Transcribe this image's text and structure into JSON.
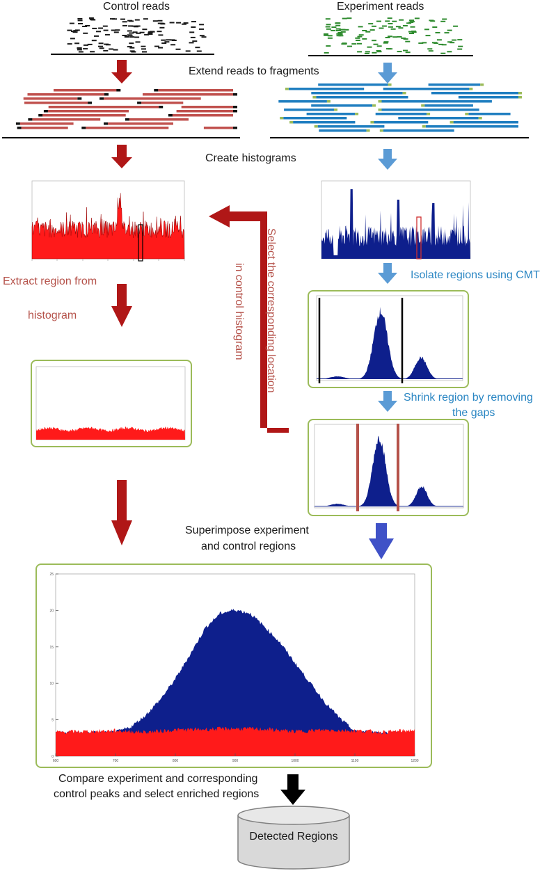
{
  "titles": {
    "control": "Control reads",
    "experiment": "Experiment reads"
  },
  "steps": {
    "extend": "Extend reads to fragments",
    "histograms": "Create histograms",
    "isolate": "Isolate regions using CMT",
    "shrink_line1": "Shrink region by removing",
    "shrink_line2": "the gaps",
    "extract_line1": "Extract region from",
    "extract_line2": "histogram",
    "select_line1": "Select the corresponding location",
    "select_line2": "in control histogram",
    "superimpose_line1": "Superimpose experiment",
    "superimpose_line2": "and control regions",
    "compare_line1": "Compare experiment and corresponding",
    "compare_line2": "control peaks and select enriched regions"
  },
  "output": {
    "label": "Detected Regions"
  },
  "colors": {
    "control_read": "#1a1a1a",
    "experiment_read": "#2e8b2e",
    "control_fragment": "#c0504d",
    "experiment_fragment": "#1f7ec0",
    "red_arrow": "#b01717",
    "blue_arrow": "#5b9bd5",
    "dark_blue_arrow": "#3f51c7",
    "control_hist": "#ff1a1a",
    "experiment_hist": "#0e1f8c",
    "panel_border": "#9bbb59"
  },
  "chart_data": {
    "type": "area",
    "title": "",
    "xlabel": "",
    "ylabel": "",
    "xlim": [
      600,
      1200
    ],
    "ylim": [
      0,
      25
    ],
    "x_ticks": [
      "600",
      "700",
      "800",
      "900",
      "1000",
      "1100",
      "1200"
    ],
    "y_ticks": [
      "0",
      "5",
      "10",
      "15",
      "20",
      "25"
    ],
    "series": [
      {
        "name": "Experiment",
        "color": "#0e1f8c",
        "x": [
          600,
          700,
          725,
          750,
          775,
          800,
          825,
          850,
          875,
          900,
          925,
          950,
          975,
          1000,
          1025,
          1050,
          1075,
          1100,
          1200
        ],
        "values": [
          3.2,
          3.3,
          4.0,
          5.6,
          7.8,
          10.6,
          14.0,
          17.6,
          19.6,
          20.1,
          19.6,
          17.7,
          15.6,
          12.8,
          10.1,
          7.4,
          5.2,
          3.4,
          3.2
        ]
      },
      {
        "name": "Control",
        "color": "#ff1a1a",
        "x": [
          600,
          650,
          700,
          750,
          800,
          850,
          900,
          950,
          1000,
          1050,
          1100,
          1150,
          1200
        ],
        "values": [
          3.3,
          3.4,
          3.5,
          3.3,
          3.6,
          3.7,
          3.8,
          3.7,
          3.4,
          3.6,
          3.5,
          3.3,
          3.6
        ]
      }
    ]
  }
}
